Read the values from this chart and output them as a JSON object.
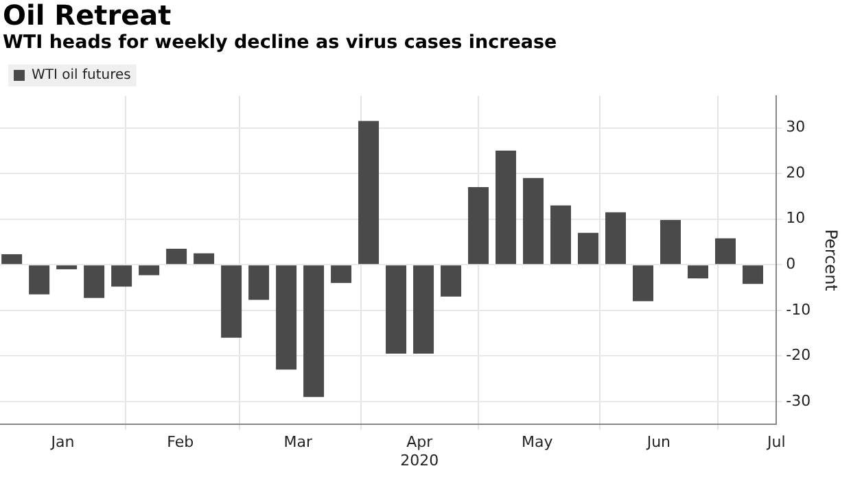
{
  "chart_data": {
    "type": "bar",
    "title": "Oil Retreat",
    "subtitle": "WTI heads for weekly decline as virus cases increase",
    "ylabel": "Percent",
    "x": [
      "2020-01-03",
      "2020-01-10",
      "2020-01-17",
      "2020-01-24",
      "2020-01-31",
      "2020-02-07",
      "2020-02-14",
      "2020-02-21",
      "2020-02-28",
      "2020-03-06",
      "2020-03-13",
      "2020-03-20",
      "2020-03-27",
      "2020-04-03",
      "2020-04-10",
      "2020-04-17",
      "2020-04-24",
      "2020-05-01",
      "2020-05-08",
      "2020-05-15",
      "2020-05-22",
      "2020-05-29",
      "2020-06-05",
      "2020-06-12",
      "2020-06-19",
      "2020-06-26",
      "2020-07-03",
      "2020-07-10"
    ],
    "series": [
      {
        "name": "WTI oil futures",
        "color": "#4a4a4a",
        "values": [
          2.3,
          -6.5,
          -1,
          -7.3,
          -4.8,
          -2.3,
          3.5,
          2.5,
          -16,
          -7.7,
          -23,
          -29,
          -4,
          31.5,
          -19.5,
          -19.5,
          -7,
          17,
          25,
          19,
          13,
          7,
          11.5,
          -8,
          9.8,
          -3,
          5.8,
          -4.2
        ]
      }
    ],
    "xlim": [
      "2019-12-31",
      "2020-07-16"
    ],
    "xticks": [
      {
        "value": "2020-01-16",
        "label": "Jan"
      },
      {
        "value": "2020-02-01",
        "label": null
      },
      {
        "value": "2020-02-15",
        "label": "Feb"
      },
      {
        "value": "2020-03-01",
        "label": null
      },
      {
        "value": "2020-03-16",
        "label": "Mar"
      },
      {
        "value": "2020-04-01",
        "label": null
      },
      {
        "value": "2020-04-16",
        "label": "Apr\n2020"
      },
      {
        "value": "2020-05-01",
        "label": null
      },
      {
        "value": "2020-05-16",
        "label": "May"
      },
      {
        "value": "2020-06-01",
        "label": null
      },
      {
        "value": "2020-06-16",
        "label": "Jun"
      },
      {
        "value": "2020-07-01",
        "label": null
      },
      {
        "value": "2020-07-16",
        "label": "Jul"
      }
    ],
    "ylim": [
      -35,
      37
    ],
    "yticks": [
      -30,
      -20,
      -10,
      0,
      10,
      20,
      30
    ],
    "grid": true,
    "legend": "top left"
  }
}
